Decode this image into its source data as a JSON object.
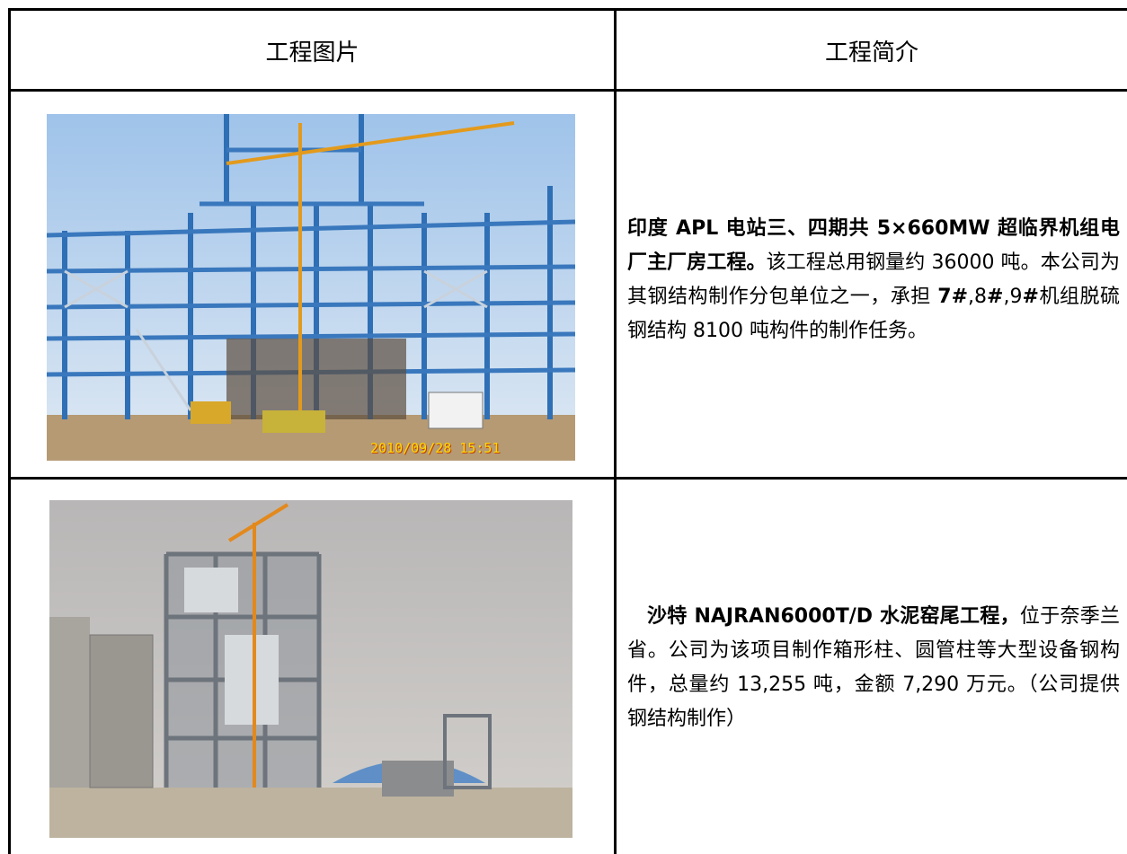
{
  "table": {
    "header": [
      "工程图片",
      "工程简介"
    ],
    "rows": [
      {
        "photo_timestamp": "2010/09/28 15:51",
        "description": [
          {
            "text": "印度 APL 电站三、四期共 5×660MW 超临界机组电厂主厂房工程。",
            "bold": true
          },
          {
            "text": "该工程总用钢量约 36000 吨。本公司为其钢结构制作分包单位之一，承担 ",
            "bold": false
          },
          {
            "text": "7#",
            "bold": true
          },
          {
            "text": ",8",
            "bold": false
          },
          {
            "text": "#",
            "bold": true
          },
          {
            "text": ",9",
            "bold": false
          },
          {
            "text": "#",
            "bold": true
          },
          {
            "text": "机组脱硫钢结构 8100 吨构件的制作任务。",
            "bold": false
          }
        ]
      },
      {
        "description": [
          {
            "text": "沙特 NAJRAN6000T/D 水泥窑尾工程，",
            "bold": true
          },
          {
            "text": "位于奈季兰省。公司为该项目制作箱形柱、圆管柱等大型设备钢构件，总量约 13,255 吨，金额 7,290 万元。（公司提供钢结构制作）",
            "bold": false
          }
        ]
      }
    ]
  }
}
